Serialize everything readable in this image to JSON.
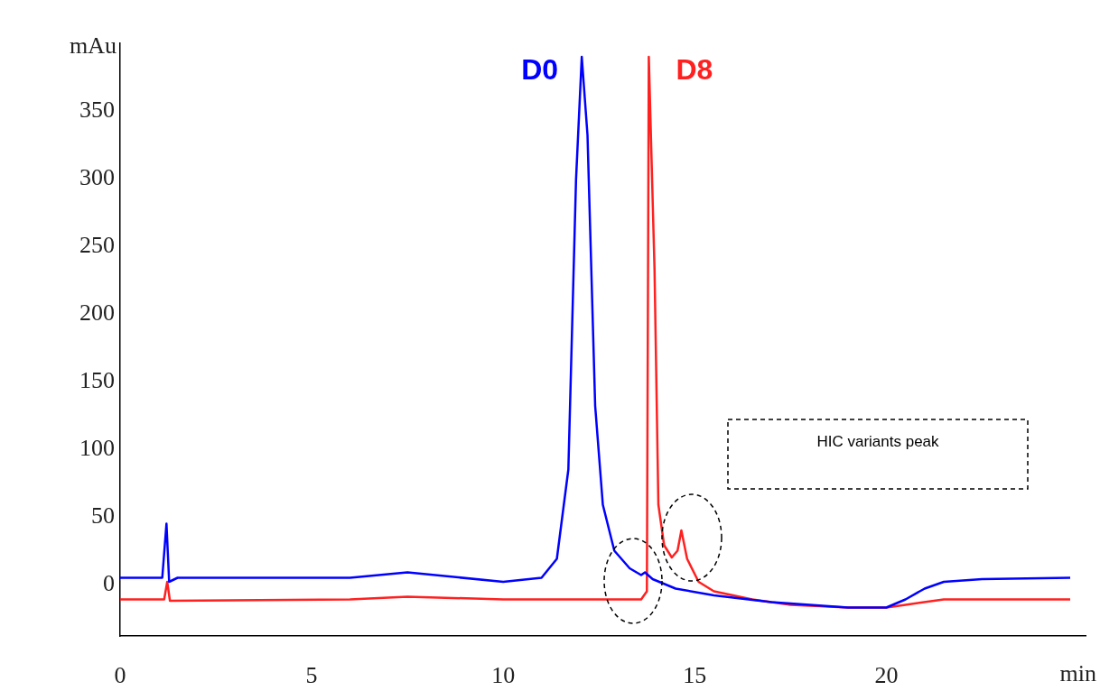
{
  "chart_data": {
    "type": "line",
    "xlabel": "min",
    "ylabel": "mAu",
    "xlim": [
      0,
      25.2
    ],
    "xticks": [
      0,
      5,
      10,
      15,
      20
    ],
    "ylim": [
      -38,
      400
    ],
    "yticks": [
      0,
      50,
      100,
      150,
      200,
      250,
      300,
      350
    ],
    "grid": false,
    "legend": false,
    "marker": "none",
    "line_style": "solid",
    "annotations": [
      "HIC variants peak"
    ],
    "series": [
      {
        "name": "D0",
        "color": "#0000ff",
        "x": [
          0,
          1.1,
          1.21,
          1.28,
          1.5,
          6,
          7.5,
          10,
          11,
          11.4,
          11.7,
          11.9,
          12.05,
          12.2,
          12.4,
          12.6,
          12.9,
          13.3,
          13.6,
          13.7,
          13.9,
          14.5,
          15.5,
          17,
          19,
          20,
          20.5,
          21,
          21.5,
          22.5,
          24.8
        ],
        "values": [
          5,
          5,
          45,
          2,
          5,
          5,
          9,
          2,
          5,
          19,
          85,
          299,
          390,
          332,
          132,
          59,
          25,
          12,
          7,
          9,
          4,
          -3,
          -8,
          -13,
          -17,
          -17,
          -11,
          -3,
          2,
          4,
          5
        ]
      },
      {
        "name": "D8",
        "color": "#ff2020",
        "x": [
          0,
          1.15,
          1.23,
          1.3,
          6,
          7.5,
          10,
          13.6,
          13.75,
          13.8,
          13.95,
          14.05,
          14.2,
          14.4,
          14.55,
          14.65,
          14.8,
          15.1,
          15.5,
          16.5,
          17.5,
          19,
          20,
          20.5,
          21.5,
          24.8
        ],
        "values": [
          -11,
          -11,
          2,
          -12,
          -11,
          -9,
          -11,
          -11,
          -5,
          390,
          232,
          59,
          29,
          20,
          25,
          40,
          19,
          2,
          -5,
          -11,
          -15,
          -17,
          -17,
          -15,
          -11,
          -11
        ]
      }
    ]
  }
}
